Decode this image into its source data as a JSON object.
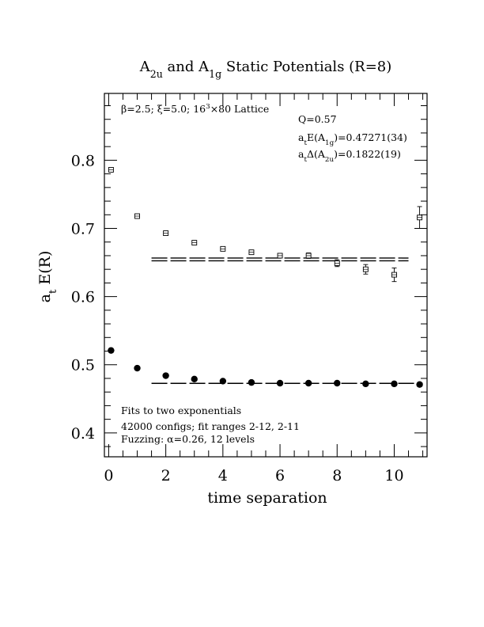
{
  "chart_data": {
    "type": "scatter",
    "title": {
      "parts": [
        {
          "t": "A",
          "sub": "2u"
        },
        {
          "t": " and A",
          "sub": "1g"
        },
        {
          "t": " Static Potentials (R=8)"
        }
      ]
    },
    "xlabel": "time separation",
    "ylabel": {
      "main": "a",
      "sub": "t",
      "rest": " E(R)"
    },
    "xlim": [
      -0.15,
      11.15
    ],
    "ylim": [
      0.365,
      0.898
    ],
    "xticks": [
      0,
      2,
      4,
      6,
      8,
      10
    ],
    "yticks": [
      0.4,
      0.5,
      0.6,
      0.7,
      0.8
    ],
    "xtick_labels": [
      "0",
      "2",
      "4",
      "6",
      "8",
      "10"
    ],
    "ytick_labels": [
      "0.4",
      "0.5",
      "0.6",
      "0.7",
      "0.8"
    ],
    "grid": false,
    "series": [
      {
        "marker": "filled-circle",
        "x": [
          0,
          1,
          2,
          3,
          4,
          5,
          6,
          7,
          8,
          9,
          10,
          11
        ],
        "y": [
          0.521,
          0.495,
          0.484,
          0.479,
          0.476,
          0.474,
          0.473,
          0.473,
          0.473,
          0.472,
          0.472,
          0.471
        ],
        "err": [
          0.001,
          0.001,
          0.001,
          0.001,
          0.001,
          0.001,
          0.001,
          0.001,
          0.001,
          0.001,
          0.001,
          0.001
        ]
      },
      {
        "marker": "open-square",
        "x": [
          0,
          1,
          2,
          3,
          4,
          5,
          6,
          7,
          8,
          9,
          10,
          11
        ],
        "y": [
          0.786,
          0.718,
          0.693,
          0.679,
          0.67,
          0.665,
          0.66,
          0.66,
          0.649,
          0.64,
          0.632,
          0.716
        ],
        "err": [
          0.001,
          0.001,
          0.002,
          0.002,
          0.002,
          0.002,
          0.003,
          0.004,
          0.005,
          0.007,
          0.01,
          0.016
        ]
      }
    ],
    "fit_lines": [
      {
        "style": "dashed-double",
        "x": [
          1.5,
          10.5
        ],
        "y": 0.6545,
        "band": 0.002
      },
      {
        "style": "dashed",
        "x": [
          1.5,
          11.0
        ],
        "y": 0.4727
      }
    ],
    "annotations": {
      "lattice": {
        "beta": "β",
        "beta_rest": "=2.5; ",
        "xi": "ξ",
        "xi_rest": "=5.0; 16",
        "sup": "3",
        "tail": "×80 Lattice"
      },
      "q": "Q=0.57",
      "energy": {
        "a": "a",
        "a_sub": "t",
        "mid": "E(A",
        "mid_sub": "1g",
        "val": ")=0.47271(34)"
      },
      "delta": {
        "a": "a",
        "a_sub": "t",
        "mid": "Δ(A",
        "mid_sub": "2u",
        "val": ")=0.1822(19)"
      },
      "fits": "Fits to two exponentials",
      "configs": "42000 configs; fit ranges 2-12, 2-11",
      "fuzzing": {
        "pre": "Fuzzing: ",
        "alpha": "α",
        "post": "=0.26, 12 levels"
      }
    }
  }
}
